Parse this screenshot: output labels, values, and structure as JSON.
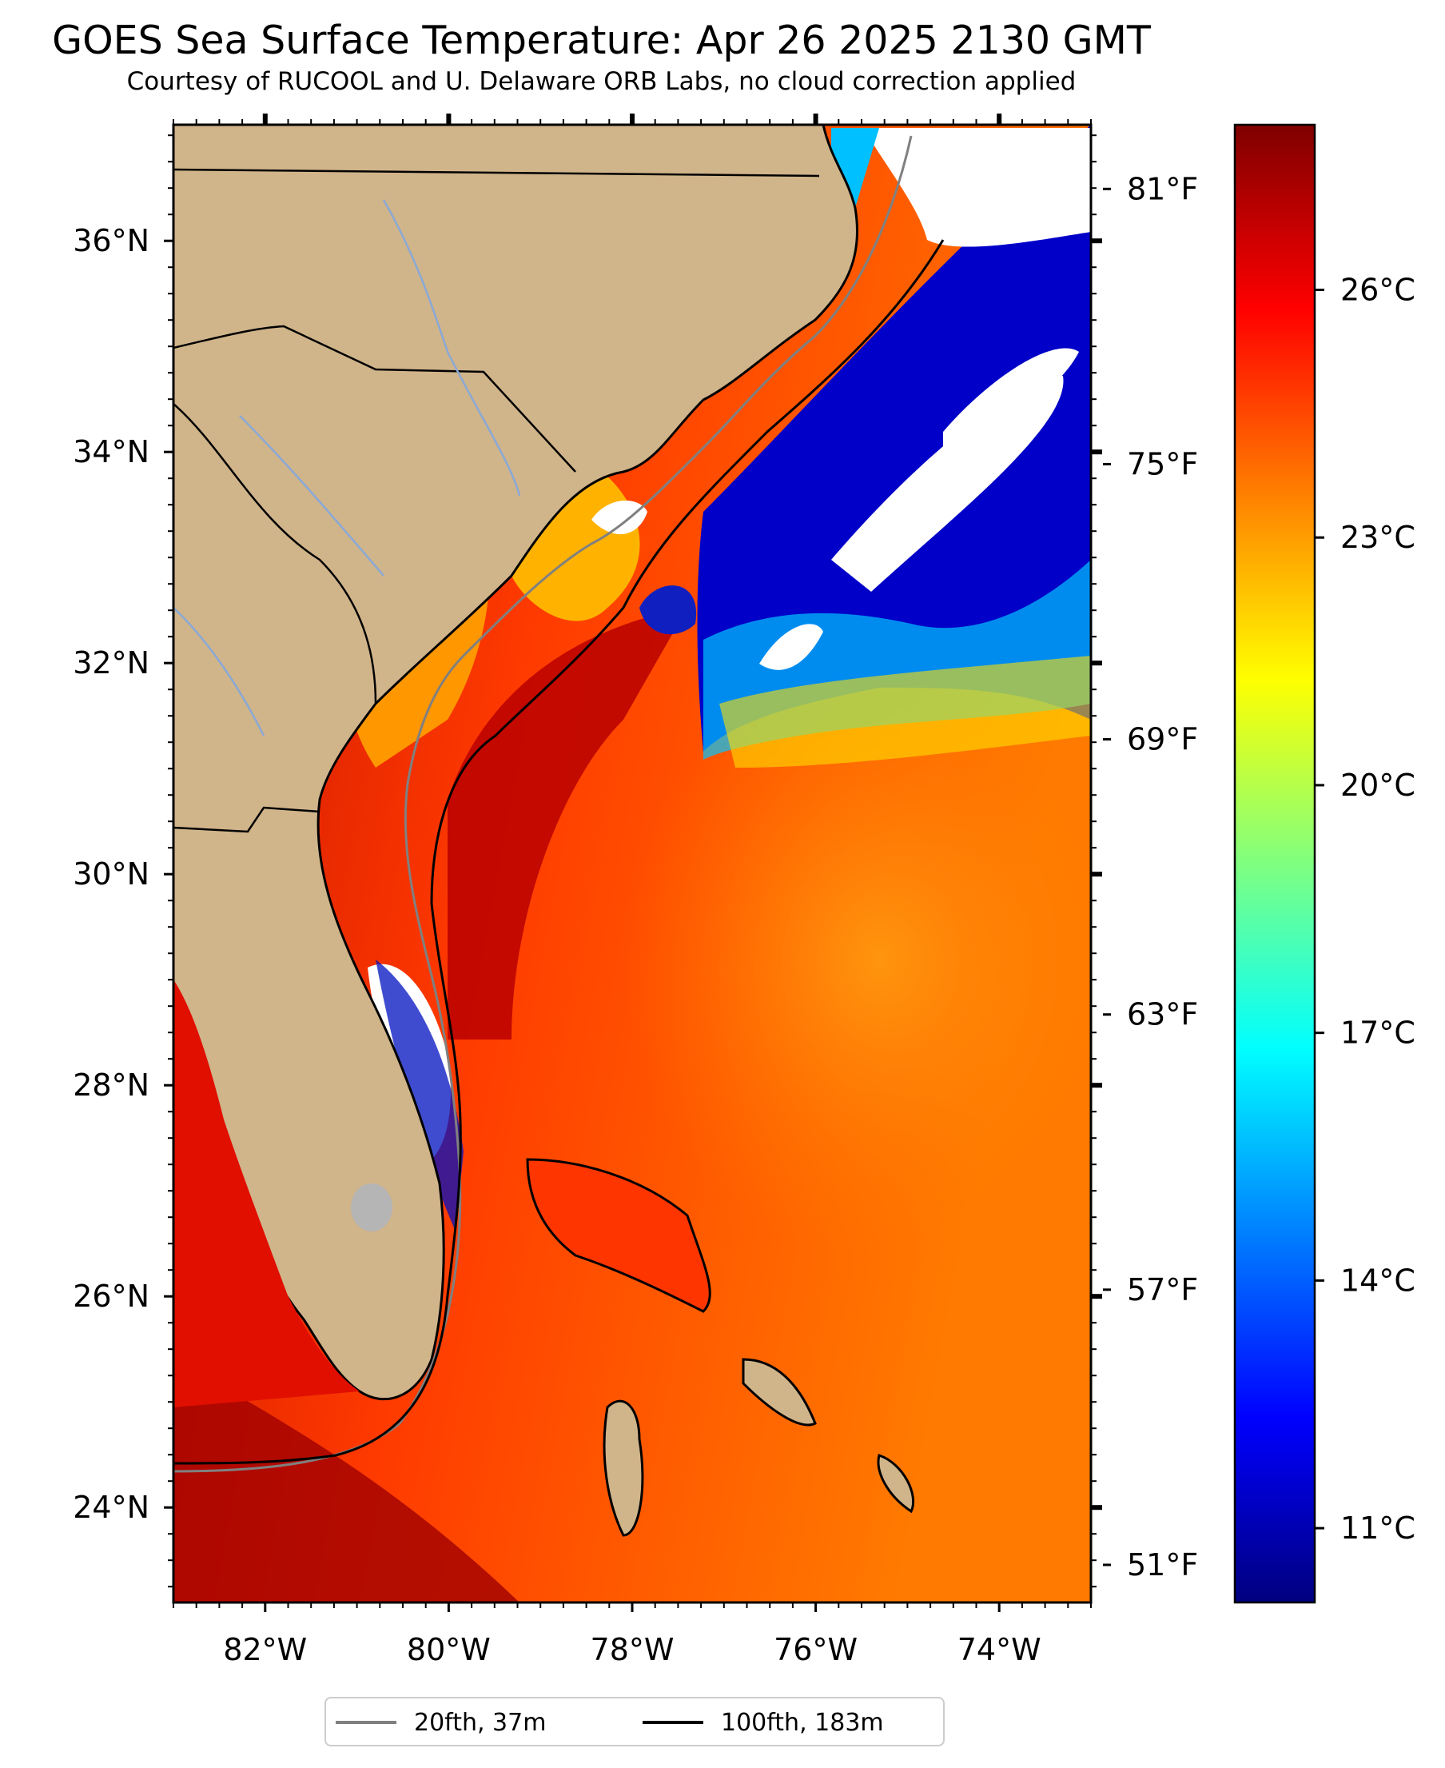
{
  "title": "GOES Sea Surface Temperature: Apr 26 2025 2130 GMT",
  "subtitle": "Courtesy of RUCOOL and U. Delaware ORB Labs, no cloud correction applied",
  "map": {
    "lon_range": [
      -83,
      -73
    ],
    "lat_range": [
      23.1,
      37.1
    ],
    "lat_ticks": [
      {
        "value": 24,
        "label": "24°N"
      },
      {
        "value": 26,
        "label": "26°N"
      },
      {
        "value": 28,
        "label": "28°N"
      },
      {
        "value": 30,
        "label": "30°N"
      },
      {
        "value": 32,
        "label": "32°N"
      },
      {
        "value": 34,
        "label": "34°N"
      },
      {
        "value": 36,
        "label": "36°N"
      }
    ],
    "lon_ticks": [
      {
        "value": -82,
        "label": "82°W"
      },
      {
        "value": -80,
        "label": "80°W"
      },
      {
        "value": -78,
        "label": "78°W"
      },
      {
        "value": -76,
        "label": "76°W"
      },
      {
        "value": -74,
        "label": "74°W"
      }
    ],
    "land_color": "#d0b48a",
    "cloud_color": "#ffffff"
  },
  "colorbar": {
    "range_c": [
      10.1,
      28.0
    ],
    "celsius_ticks": [
      {
        "value": 11,
        "label": "11°C"
      },
      {
        "value": 14,
        "label": "14°C"
      },
      {
        "value": 17,
        "label": "17°C"
      },
      {
        "value": 20,
        "label": "20°C"
      },
      {
        "value": 23,
        "label": "23°C"
      },
      {
        "value": 26,
        "label": "26°C"
      }
    ],
    "fahrenheit_ticks": [
      {
        "value": 51,
        "label": "51°F"
      },
      {
        "value": 57,
        "label": "57°F"
      },
      {
        "value": 63,
        "label": "63°F"
      },
      {
        "value": 69,
        "label": "69°F"
      },
      {
        "value": 75,
        "label": "75°F"
      },
      {
        "value": 81,
        "label": "81°F"
      }
    ],
    "colormap": "jet"
  },
  "legend": [
    {
      "label": "20fth, 37m",
      "color": "#808080"
    },
    {
      "label": "100fth, 183m",
      "color": "#000000"
    }
  ]
}
